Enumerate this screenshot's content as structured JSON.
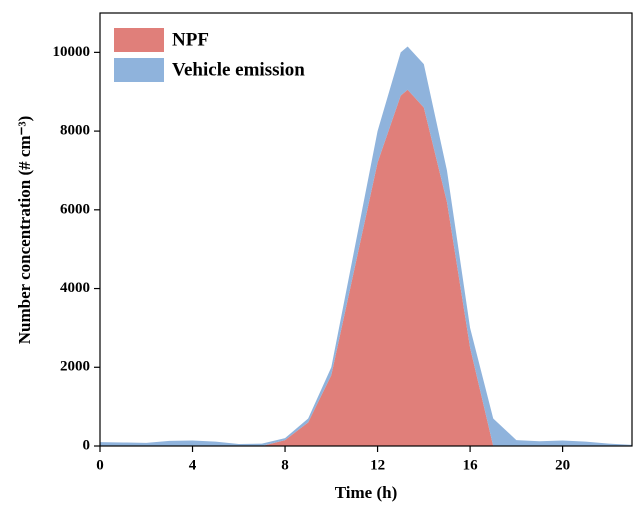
{
  "chart_data": {
    "type": "stacked_area",
    "xlabel": "Time (h)",
    "ylabel": "Number concentration (# cm⁻³)",
    "x": [
      0,
      1,
      2,
      3,
      4,
      5,
      6,
      7,
      8,
      9,
      10,
      11,
      12,
      13,
      13.3,
      14,
      15,
      16,
      17,
      18,
      19,
      20,
      21,
      22,
      23
    ],
    "series": [
      {
        "name": "NPF",
        "color": "#e07f7a",
        "values": [
          0,
          0,
          0,
          0,
          0,
          0,
          0,
          0,
          150,
          600,
          1800,
          4500,
          7200,
          8900,
          9050,
          8600,
          6200,
          2500,
          0,
          0,
          0,
          0,
          0,
          0,
          0
        ]
      },
      {
        "name": "Vehicle emission",
        "color": "#8fb3dc",
        "values": [
          100,
          90,
          80,
          130,
          140,
          110,
          50,
          60,
          50,
          100,
          200,
          500,
          800,
          1100,
          1100,
          1100,
          800,
          500,
          700,
          150,
          120,
          140,
          110,
          60,
          30
        ]
      }
    ],
    "xlim": [
      0,
      23
    ],
    "xticks": [
      0,
      4,
      8,
      12,
      16,
      20
    ],
    "ylim": [
      0,
      11000
    ],
    "yticks": [
      0,
      2000,
      4000,
      6000,
      8000,
      10000
    ],
    "legend": "upper left"
  }
}
